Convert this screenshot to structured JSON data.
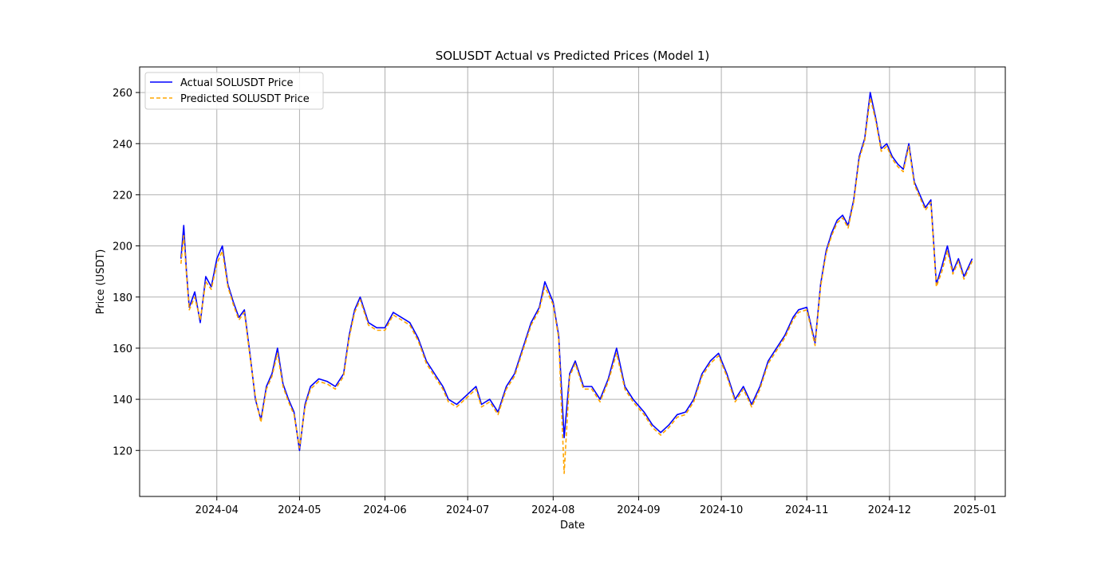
{
  "chart_data": {
    "type": "line",
    "title": "SOLUSDT Actual vs Predicted Prices (Model 1)",
    "xlabel": "Date",
    "ylabel": "Price (USDT)",
    "xlim": [
      "2024-03-04",
      "2025-01-12"
    ],
    "ylim": [
      102,
      270
    ],
    "grid": true,
    "legend_position": "top-left",
    "x_ticks": [
      "2024-04",
      "2024-05",
      "2024-06",
      "2024-07",
      "2024-08",
      "2024-09",
      "2024-10",
      "2024-11",
      "2024-12",
      "2025-01"
    ],
    "y_ticks": [
      120,
      140,
      160,
      180,
      200,
      220,
      240,
      260
    ],
    "x": [
      "2024-03-19",
      "2024-03-20",
      "2024-03-21",
      "2024-03-22",
      "2024-03-24",
      "2024-03-26",
      "2024-03-28",
      "2024-03-30",
      "2024-04-01",
      "2024-04-03",
      "2024-04-05",
      "2024-04-07",
      "2024-04-09",
      "2024-04-11",
      "2024-04-13",
      "2024-04-15",
      "2024-04-17",
      "2024-04-19",
      "2024-04-21",
      "2024-04-23",
      "2024-04-25",
      "2024-04-27",
      "2024-04-29",
      "2024-05-01",
      "2024-05-03",
      "2024-05-05",
      "2024-05-08",
      "2024-05-11",
      "2024-05-14",
      "2024-05-17",
      "2024-05-19",
      "2024-05-21",
      "2024-05-23",
      "2024-05-26",
      "2024-05-29",
      "2024-06-01",
      "2024-06-04",
      "2024-06-07",
      "2024-06-10",
      "2024-06-13",
      "2024-06-16",
      "2024-06-19",
      "2024-06-22",
      "2024-06-24",
      "2024-06-27",
      "2024-07-01",
      "2024-07-04",
      "2024-07-06",
      "2024-07-09",
      "2024-07-12",
      "2024-07-15",
      "2024-07-18",
      "2024-07-21",
      "2024-07-24",
      "2024-07-27",
      "2024-07-29",
      "2024-08-01",
      "2024-08-03",
      "2024-08-05",
      "2024-08-07",
      "2024-08-09",
      "2024-08-12",
      "2024-08-15",
      "2024-08-18",
      "2024-08-21",
      "2024-08-24",
      "2024-08-27",
      "2024-08-30",
      "2024-09-03",
      "2024-09-06",
      "2024-09-09",
      "2024-09-12",
      "2024-09-15",
      "2024-09-18",
      "2024-09-21",
      "2024-09-24",
      "2024-09-27",
      "2024-09-30",
      "2024-10-03",
      "2024-10-06",
      "2024-10-09",
      "2024-10-12",
      "2024-10-15",
      "2024-10-18",
      "2024-10-21",
      "2024-10-24",
      "2024-10-27",
      "2024-10-29",
      "2024-11-01",
      "2024-11-04",
      "2024-11-06",
      "2024-11-08",
      "2024-11-10",
      "2024-11-12",
      "2024-11-14",
      "2024-11-16",
      "2024-11-18",
      "2024-11-20",
      "2024-11-22",
      "2024-11-24",
      "2024-11-26",
      "2024-11-28",
      "2024-11-30",
      "2024-12-02",
      "2024-12-04",
      "2024-12-06",
      "2024-12-08",
      "2024-12-10",
      "2024-12-12",
      "2024-12-14",
      "2024-12-16",
      "2024-12-18",
      "2024-12-20",
      "2024-12-22",
      "2024-12-24",
      "2024-12-26",
      "2024-12-28",
      "2024-12-31"
    ],
    "series": [
      {
        "name": "Actual SOLUSDT Price",
        "color": "#0000ff",
        "style": "solid",
        "values": [
          195,
          208,
          190,
          176,
          182,
          170,
          188,
          184,
          195,
          200,
          185,
          178,
          172,
          175,
          158,
          140,
          132,
          145,
          150,
          160,
          146,
          140,
          135,
          120,
          138,
          145,
          148,
          147,
          145,
          150,
          165,
          175,
          180,
          170,
          168,
          168,
          174,
          172,
          170,
          164,
          155,
          150,
          145,
          140,
          138,
          142,
          145,
          138,
          140,
          135,
          145,
          150,
          160,
          170,
          176,
          186,
          178,
          165,
          125,
          150,
          155,
          145,
          145,
          140,
          148,
          160,
          145,
          140,
          135,
          130,
          127,
          130,
          134,
          135,
          140,
          150,
          155,
          158,
          150,
          140,
          145,
          138,
          145,
          155,
          160,
          165,
          172,
          175,
          176,
          162,
          185,
          198,
          205,
          210,
          212,
          208,
          218,
          235,
          242,
          260,
          250,
          238,
          240,
          235,
          232,
          230,
          240,
          225,
          220,
          215,
          218,
          185,
          192,
          200,
          190,
          195,
          188,
          195
        ]
      },
      {
        "name": "Predicted SOLUSDT Price",
        "color": "#ffa500",
        "style": "dashed",
        "values": [
          193,
          204,
          189,
          175,
          180,
          171,
          186,
          183,
          193,
          198,
          184,
          177,
          171,
          174,
          157,
          141,
          131,
          144,
          149,
          158,
          145,
          139,
          134,
          121,
          137,
          144,
          147,
          146,
          144,
          149,
          164,
          174,
          179,
          169,
          167,
          167,
          173,
          171,
          169,
          163,
          154,
          149,
          144,
          139,
          137,
          141,
          144,
          137,
          139,
          134,
          144,
          149,
          159,
          169,
          175,
          184,
          177,
          164,
          111,
          149,
          154,
          144,
          144,
          139,
          147,
          158,
          144,
          139,
          134,
          129,
          126,
          129,
          133,
          134,
          139,
          149,
          154,
          157,
          149,
          139,
          144,
          137,
          144,
          154,
          159,
          164,
          171,
          174,
          175,
          161,
          184,
          197,
          204,
          209,
          211,
          207,
          217,
          234,
          241,
          258,
          249,
          237,
          239,
          234,
          231,
          229,
          239,
          224,
          219,
          214,
          217,
          184,
          190,
          198,
          189,
          194,
          187,
          194
        ]
      }
    ]
  }
}
